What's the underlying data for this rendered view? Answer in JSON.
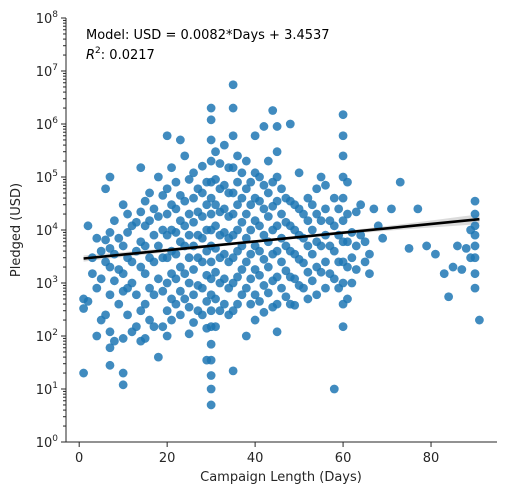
{
  "chart_data": {
    "type": "scatter",
    "title": "",
    "xlabel": "Campaign Length (Days)",
    "ylabel": "Pledged (USD)",
    "xlim": [
      -3,
      95
    ],
    "ylim": [
      1,
      100000000
    ],
    "yscale": "log",
    "x_ticks": [
      0,
      20,
      40,
      60,
      80
    ],
    "x_tick_labels": [
      "0",
      "20",
      "40",
      "60",
      "80"
    ],
    "y_ticks": [
      1,
      10,
      100,
      1000,
      10000,
      100000,
      1000000,
      10000000,
      100000000
    ],
    "y_tick_labels": [
      {
        "base": "10",
        "exp": "0"
      },
      {
        "base": "10",
        "exp": "1"
      },
      {
        "base": "10",
        "exp": "2"
      },
      {
        "base": "10",
        "exp": "3"
      },
      {
        "base": "10",
        "exp": "4"
      },
      {
        "base": "10",
        "exp": "5"
      },
      {
        "base": "10",
        "exp": "6"
      },
      {
        "base": "10",
        "exp": "7"
      },
      {
        "base": "10",
        "exp": "8"
      }
    ],
    "grid": false,
    "point_color": "#1f77b4",
    "fit_color": "#000000",
    "band_color": "#999999",
    "annotation": {
      "model": "Model: USD = 0.0082*Days + 3.4537",
      "r2_symbol": "R",
      "r2_sup": "2",
      "r2_value": ": 0.0217"
    },
    "fit_line": {
      "x": [
        1,
        91
      ],
      "y": [
        2900,
        16000
      ]
    },
    "points": [
      [
        1,
        500
      ],
      [
        1,
        330
      ],
      [
        1,
        20
      ],
      [
        2,
        12000
      ],
      [
        2,
        450
      ],
      [
        3,
        3000
      ],
      [
        3,
        1500
      ],
      [
        4,
        7000
      ],
      [
        4,
        800
      ],
      [
        4,
        100
      ],
      [
        5,
        4000
      ],
      [
        5,
        1200
      ],
      [
        5,
        200
      ],
      [
        6,
        60000
      ],
      [
        6,
        6500
      ],
      [
        6,
        2500
      ],
      [
        6,
        250
      ],
      [
        7,
        100000
      ],
      [
        7,
        9000
      ],
      [
        7,
        4500
      ],
      [
        7,
        2000
      ],
      [
        7,
        600
      ],
      [
        7,
        120
      ],
      [
        7,
        60
      ],
      [
        7,
        28
      ],
      [
        8,
        15000
      ],
      [
        8,
        3500
      ],
      [
        8,
        1100
      ],
      [
        8,
        80
      ],
      [
        9,
        7000
      ],
      [
        9,
        1800
      ],
      [
        9,
        400
      ],
      [
        10,
        30000
      ],
      [
        10,
        5000
      ],
      [
        10,
        1500
      ],
      [
        10,
        700
      ],
      [
        10,
        90
      ],
      [
        10,
        20
      ],
      [
        10,
        12
      ],
      [
        11,
        20000
      ],
      [
        11,
        9000
      ],
      [
        11,
        3000
      ],
      [
        11,
        800
      ],
      [
        11,
        250
      ],
      [
        12,
        12000
      ],
      [
        12,
        2500
      ],
      [
        12,
        1000
      ],
      [
        12,
        120
      ],
      [
        13,
        14000
      ],
      [
        13,
        4000
      ],
      [
        13,
        600
      ],
      [
        13,
        150
      ],
      [
        14,
        150000
      ],
      [
        14,
        22000
      ],
      [
        14,
        6000
      ],
      [
        14,
        2000
      ],
      [
        14,
        300
      ],
      [
        14,
        80
      ],
      [
        15,
        35000
      ],
      [
        15,
        12000
      ],
      [
        15,
        5000
      ],
      [
        15,
        1500
      ],
      [
        15,
        400
      ],
      [
        15,
        90
      ],
      [
        16,
        50000
      ],
      [
        16,
        15000
      ],
      [
        16,
        3000
      ],
      [
        16,
        800
      ],
      [
        16,
        200
      ],
      [
        17,
        25000
      ],
      [
        17,
        8000
      ],
      [
        17,
        2500
      ],
      [
        17,
        600
      ],
      [
        17,
        150
      ],
      [
        18,
        100000
      ],
      [
        18,
        18000
      ],
      [
        18,
        5000
      ],
      [
        18,
        1200
      ],
      [
        18,
        40
      ],
      [
        19,
        45000
      ],
      [
        19,
        10000
      ],
      [
        19,
        3000
      ],
      [
        19,
        700
      ],
      [
        19,
        150
      ],
      [
        20,
        600000
      ],
      [
        20,
        60000
      ],
      [
        20,
        20000
      ],
      [
        20,
        8000
      ],
      [
        20,
        3000
      ],
      [
        20,
        1000
      ],
      [
        20,
        300
      ],
      [
        20,
        100
      ],
      [
        21,
        150000
      ],
      [
        21,
        30000
      ],
      [
        21,
        10000
      ],
      [
        21,
        4000
      ],
      [
        21,
        1500
      ],
      [
        21,
        500
      ],
      [
        21,
        200
      ],
      [
        22,
        80000
      ],
      [
        22,
        25000
      ],
      [
        22,
        9000
      ],
      [
        22,
        3500
      ],
      [
        22,
        1200
      ],
      [
        22,
        400
      ],
      [
        23,
        500000
      ],
      [
        23,
        45000
      ],
      [
        23,
        15000
      ],
      [
        23,
        6000
      ],
      [
        23,
        2000
      ],
      [
        23,
        700
      ],
      [
        23,
        250
      ],
      [
        24,
        250000
      ],
      [
        24,
        35000
      ],
      [
        24,
        12000
      ],
      [
        24,
        5000
      ],
      [
        24,
        1500
      ],
      [
        24,
        500
      ],
      [
        25,
        90000
      ],
      [
        25,
        20000
      ],
      [
        25,
        8000
      ],
      [
        25,
        3000
      ],
      [
        25,
        1000
      ],
      [
        25,
        350
      ],
      [
        25,
        110
      ],
      [
        26,
        120000
      ],
      [
        26,
        40000
      ],
      [
        26,
        14000
      ],
      [
        26,
        5000
      ],
      [
        26,
        1800
      ],
      [
        26,
        600
      ],
      [
        26,
        180
      ],
      [
        27,
        60000
      ],
      [
        27,
        22000
      ],
      [
        27,
        8000
      ],
      [
        27,
        3000
      ],
      [
        27,
        900
      ],
      [
        27,
        300
      ],
      [
        28,
        160000
      ],
      [
        28,
        50000
      ],
      [
        28,
        18000
      ],
      [
        28,
        7000
      ],
      [
        28,
        2500
      ],
      [
        28,
        800
      ],
      [
        28,
        250
      ],
      [
        29,
        80000
      ],
      [
        29,
        30000
      ],
      [
        29,
        10000
      ],
      [
        29,
        4000
      ],
      [
        29,
        1400
      ],
      [
        29,
        450
      ],
      [
        29,
        140
      ],
      [
        29,
        35
      ],
      [
        30,
        2000000
      ],
      [
        30,
        1200000
      ],
      [
        30,
        500000
      ],
      [
        30,
        200000
      ],
      [
        30,
        80000
      ],
      [
        30,
        40000
      ],
      [
        30,
        20000
      ],
      [
        30,
        10000
      ],
      [
        30,
        5000
      ],
      [
        30,
        2500
      ],
      [
        30,
        1200
      ],
      [
        30,
        600
      ],
      [
        30,
        300
      ],
      [
        30,
        150
      ],
      [
        30,
        70
      ],
      [
        30,
        35
      ],
      [
        30,
        18
      ],
      [
        30,
        10
      ],
      [
        30,
        5
      ],
      [
        31,
        300000
      ],
      [
        31,
        90000
      ],
      [
        31,
        30000
      ],
      [
        31,
        12000
      ],
      [
        31,
        4500
      ],
      [
        31,
        1600
      ],
      [
        31,
        500
      ],
      [
        31,
        150
      ],
      [
        32,
        180000
      ],
      [
        32,
        60000
      ],
      [
        32,
        22000
      ],
      [
        32,
        8000
      ],
      [
        32,
        3000
      ],
      [
        32,
        1000
      ],
      [
        32,
        300
      ],
      [
        33,
        400000
      ],
      [
        33,
        70000
      ],
      [
        33,
        25000
      ],
      [
        33,
        9000
      ],
      [
        33,
        3500
      ],
      [
        33,
        1200
      ],
      [
        33,
        400
      ],
      [
        34,
        150000
      ],
      [
        34,
        50000
      ],
      [
        34,
        18000
      ],
      [
        34,
        7000
      ],
      [
        34,
        2500
      ],
      [
        34,
        800
      ],
      [
        34,
        250
      ],
      [
        35,
        5500000
      ],
      [
        35,
        2000000
      ],
      [
        35,
        600000
      ],
      [
        35,
        150000
      ],
      [
        35,
        50000
      ],
      [
        35,
        20000
      ],
      [
        35,
        8000
      ],
      [
        35,
        3000
      ],
      [
        35,
        1000
      ],
      [
        35,
        300
      ],
      [
        35,
        22
      ],
      [
        36,
        250000
      ],
      [
        36,
        80000
      ],
      [
        36,
        30000
      ],
      [
        36,
        10000
      ],
      [
        36,
        4000
      ],
      [
        36,
        1300
      ],
      [
        36,
        400
      ],
      [
        37,
        120000
      ],
      [
        37,
        40000
      ],
      [
        37,
        14000
      ],
      [
        37,
        5000
      ],
      [
        37,
        1800
      ],
      [
        37,
        600
      ],
      [
        38,
        200000
      ],
      [
        38,
        60000
      ],
      [
        38,
        20000
      ],
      [
        38,
        7000
      ],
      [
        38,
        2500
      ],
      [
        38,
        800
      ],
      [
        38,
        100
      ],
      [
        39,
        80000
      ],
      [
        39,
        30000
      ],
      [
        39,
        10000
      ],
      [
        39,
        3500
      ],
      [
        39,
        1200
      ],
      [
        39,
        400
      ],
      [
        40,
        600000
      ],
      [
        40,
        120000
      ],
      [
        40,
        40000
      ],
      [
        40,
        15000
      ],
      [
        40,
        5000
      ],
      [
        40,
        1800
      ],
      [
        40,
        600
      ],
      [
        40,
        200
      ],
      [
        41,
        100000
      ],
      [
        41,
        35000
      ],
      [
        41,
        12000
      ],
      [
        41,
        4000
      ],
      [
        41,
        1400
      ],
      [
        41,
        450
      ],
      [
        42,
        900000
      ],
      [
        42,
        70000
      ],
      [
        42,
        25000
      ],
      [
        42,
        8000
      ],
      [
        42,
        2800
      ],
      [
        42,
        900
      ],
      [
        42,
        280
      ],
      [
        43,
        200000
      ],
      [
        43,
        50000
      ],
      [
        43,
        18000
      ],
      [
        43,
        6000
      ],
      [
        43,
        2000
      ],
      [
        43,
        650
      ],
      [
        44,
        1800000
      ],
      [
        44,
        80000
      ],
      [
        44,
        28000
      ],
      [
        44,
        10000
      ],
      [
        44,
        3500
      ],
      [
        44,
        1100
      ],
      [
        44,
        350
      ],
      [
        45,
        900000
      ],
      [
        45,
        300000
      ],
      [
        45,
        100000
      ],
      [
        45,
        35000
      ],
      [
        45,
        12000
      ],
      [
        45,
        4000
      ],
      [
        45,
        1300
      ],
      [
        45,
        400
      ],
      [
        45,
        120
      ],
      [
        46,
        60000
      ],
      [
        46,
        20000
      ],
      [
        46,
        7000
      ],
      [
        46,
        2500
      ],
      [
        46,
        800
      ],
      [
        47,
        40000
      ],
      [
        47,
        14000
      ],
      [
        47,
        5000
      ],
      [
        47,
        1700
      ],
      [
        47,
        550
      ],
      [
        48,
        1000000
      ],
      [
        48,
        35000
      ],
      [
        48,
        12000
      ],
      [
        48,
        4000
      ],
      [
        48,
        1300
      ],
      [
        48,
        400
      ],
      [
        49,
        30000
      ],
      [
        49,
        10000
      ],
      [
        49,
        3500
      ],
      [
        49,
        1200
      ],
      [
        49,
        380
      ],
      [
        50,
        120000
      ],
      [
        50,
        25000
      ],
      [
        50,
        8000
      ],
      [
        50,
        2800
      ],
      [
        50,
        900
      ],
      [
        51,
        20000
      ],
      [
        51,
        7000
      ],
      [
        51,
        2400
      ],
      [
        51,
        800
      ],
      [
        52,
        40000
      ],
      [
        52,
        15000
      ],
      [
        52,
        5000
      ],
      [
        52,
        1600
      ],
      [
        52,
        500
      ],
      [
        53,
        30000
      ],
      [
        53,
        10000
      ],
      [
        53,
        3500
      ],
      [
        53,
        1100
      ],
      [
        54,
        60000
      ],
      [
        54,
        20000
      ],
      [
        54,
        6000
      ],
      [
        54,
        2000
      ],
      [
        54,
        600
      ],
      [
        55,
        100000
      ],
      [
        55,
        15000
      ],
      [
        55,
        5000
      ],
      [
        55,
        1600
      ],
      [
        56,
        70000
      ],
      [
        56,
        25000
      ],
      [
        56,
        8000
      ],
      [
        56,
        2500
      ],
      [
        56,
        800
      ],
      [
        57,
        15000
      ],
      [
        57,
        5000
      ],
      [
        57,
        1500
      ],
      [
        58,
        10
      ],
      [
        58,
        40000
      ],
      [
        58,
        12000
      ],
      [
        58,
        4000
      ],
      [
        58,
        1200
      ],
      [
        59,
        25000
      ],
      [
        59,
        8000
      ],
      [
        59,
        2500
      ],
      [
        59,
        800
      ],
      [
        60,
        1500000
      ],
      [
        60,
        600000
      ],
      [
        60,
        250000
      ],
      [
        60,
        100000
      ],
      [
        60,
        40000
      ],
      [
        60,
        15000
      ],
      [
        60,
        6000
      ],
      [
        60,
        2500
      ],
      [
        60,
        1000
      ],
      [
        60,
        400
      ],
      [
        60,
        150
      ],
      [
        61,
        80000
      ],
      [
        61,
        20000
      ],
      [
        61,
        6000
      ],
      [
        61,
        2000
      ],
      [
        61,
        500
      ],
      [
        62,
        9000
      ],
      [
        62,
        3000
      ],
      [
        62,
        1000
      ],
      [
        63,
        22000
      ],
      [
        63,
        5000
      ],
      [
        63,
        1800
      ],
      [
        64,
        30000
      ],
      [
        64,
        8000
      ],
      [
        65,
        6000
      ],
      [
        65,
        2500
      ],
      [
        66,
        3500
      ],
      [
        66,
        1500
      ],
      [
        67,
        25000
      ],
      [
        68,
        12000
      ],
      [
        69,
        7000
      ],
      [
        71,
        25000
      ],
      [
        73,
        80000
      ],
      [
        75,
        4500
      ],
      [
        77,
        25000
      ],
      [
        79,
        5000
      ],
      [
        81,
        3500
      ],
      [
        83,
        1500
      ],
      [
        84,
        550
      ],
      [
        85,
        2000
      ],
      [
        86,
        5000
      ],
      [
        87,
        1800
      ],
      [
        88,
        4500
      ],
      [
        89,
        3000
      ],
      [
        89,
        10000
      ],
      [
        90,
        35000
      ],
      [
        90,
        20000
      ],
      [
        90,
        12000
      ],
      [
        90,
        8000
      ],
      [
        90,
        5000
      ],
      [
        90,
        3000
      ],
      [
        90,
        1500
      ],
      [
        90,
        800
      ],
      [
        91,
        200
      ]
    ]
  }
}
